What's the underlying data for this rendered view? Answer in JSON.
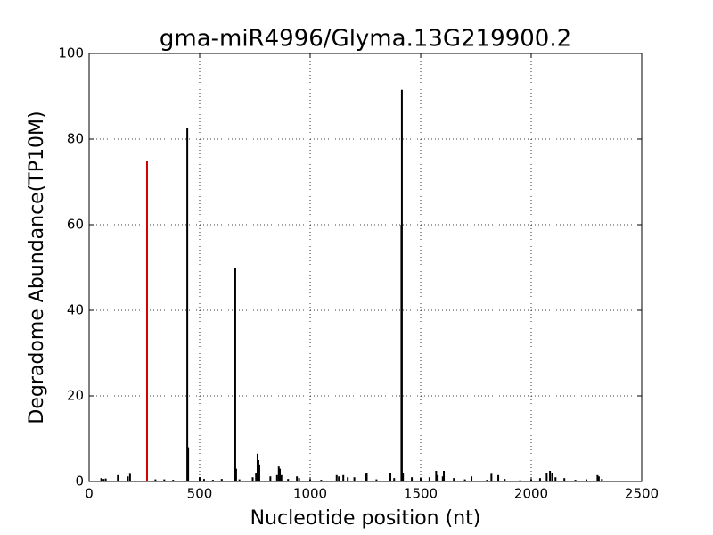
{
  "chart_data": {
    "type": "spike",
    "title": "gma-miR4996/Glyma.13G219900.2",
    "x_label": "Nucleotide position (nt)",
    "y_label": "Degradome Abundance(TP10M)",
    "xlim": [
      0,
      2500
    ],
    "xticks": [
      0,
      500,
      1000,
      1500,
      2000,
      2500
    ],
    "ylim": [
      0,
      100
    ],
    "yticks": [
      0,
      20,
      40,
      60,
      80,
      100
    ],
    "grid": true,
    "series": [
      {
        "color": "#000000",
        "x": [
          55,
          65,
          75,
          130,
          175,
          185,
          300,
          340,
          380,
          444,
          448,
          500,
          520,
          560,
          600,
          661,
          665,
          680,
          740,
          755,
          762,
          766,
          770,
          820,
          850,
          858,
          863,
          870,
          900,
          940,
          950,
          1000,
          1050,
          1120,
          1130,
          1150,
          1170,
          1200,
          1250,
          1256,
          1300,
          1363,
          1380,
          1413,
          1415,
          1420,
          1460,
          1500,
          1540,
          1570,
          1577,
          1600,
          1605,
          1650,
          1700,
          1730,
          1800,
          1820,
          1851,
          1880,
          1950,
          2000,
          2040,
          2070,
          2085,
          2095,
          2110,
          2150,
          2200,
          2250,
          2300,
          2306,
          2320
        ],
        "values": [
          0.8,
          0.6,
          0.7,
          1.5,
          1.2,
          1.8,
          0.5,
          0.5,
          0.4,
          82.5,
          8,
          1,
          0.6,
          0.4,
          0.6,
          50,
          3,
          0.5,
          1,
          2,
          6.5,
          5,
          4,
          1.2,
          1.5,
          3.5,
          3,
          1.5,
          0.6,
          1.2,
          0.8,
          0.5,
          0.4,
          1.5,
          1.2,
          1.5,
          1,
          1,
          1.8,
          2,
          0.5,
          2,
          0.8,
          60,
          91.5,
          2,
          1,
          0.8,
          1,
          2.5,
          1.5,
          1.2,
          2.5,
          0.8,
          0.5,
          1.2,
          0.4,
          1.8,
          1.5,
          0.6,
          0.3,
          0.5,
          0.8,
          2,
          2.5,
          2,
          1,
          0.8,
          0.4,
          0.5,
          1.5,
          1.2,
          0.6
        ]
      },
      {
        "color": "#d00000",
        "x": [
          262
        ],
        "values": [
          75
        ]
      }
    ]
  }
}
